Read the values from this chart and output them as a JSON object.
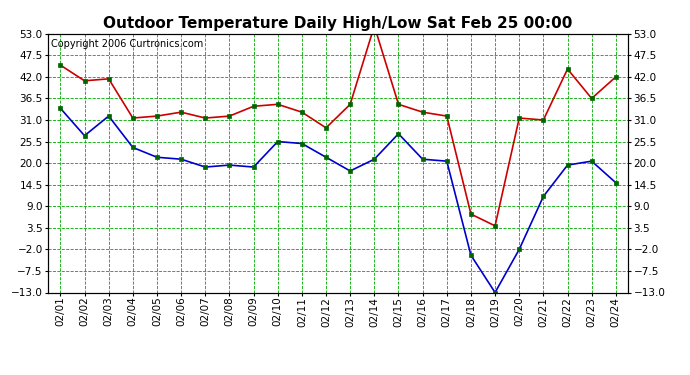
{
  "title": "Outdoor Temperature Daily High/Low Sat Feb 25 00:00",
  "copyright": "Copyright 2006 Curtronics.com",
  "dates": [
    "02/01",
    "02/02",
    "02/03",
    "02/04",
    "02/05",
    "02/06",
    "02/07",
    "02/08",
    "02/09",
    "02/10",
    "02/11",
    "02/12",
    "02/13",
    "02/14",
    "02/15",
    "02/16",
    "02/17",
    "02/18",
    "02/19",
    "02/20",
    "02/21",
    "02/22",
    "02/23",
    "02/24"
  ],
  "high_temps": [
    45.0,
    41.0,
    41.5,
    31.5,
    32.0,
    33.0,
    31.5,
    32.0,
    34.5,
    35.0,
    33.0,
    29.0,
    35.0,
    55.0,
    35.0,
    33.0,
    32.0,
    7.0,
    4.0,
    31.5,
    31.0,
    44.0,
    36.5,
    42.0
  ],
  "low_temps": [
    34.0,
    27.0,
    32.0,
    24.0,
    21.5,
    21.0,
    19.0,
    19.5,
    19.0,
    25.5,
    25.0,
    21.5,
    18.0,
    21.0,
    27.5,
    21.0,
    20.5,
    -3.5,
    -13.0,
    -2.0,
    11.5,
    19.5,
    20.5,
    15.0
  ],
  "high_color": "#cc0000",
  "low_color": "#0000cc",
  "marker_color": "#006600",
  "bg_color": "#ffffff",
  "grid_color": "#00aa00",
  "ylim": [
    -13.0,
    53.0
  ],
  "yticks": [
    -13.0,
    -7.5,
    -2.0,
    3.5,
    9.0,
    14.5,
    20.0,
    25.5,
    31.0,
    36.5,
    42.0,
    47.5,
    53.0
  ],
  "title_fontsize": 11,
  "axis_fontsize": 7.5,
  "copyright_fontsize": 7
}
